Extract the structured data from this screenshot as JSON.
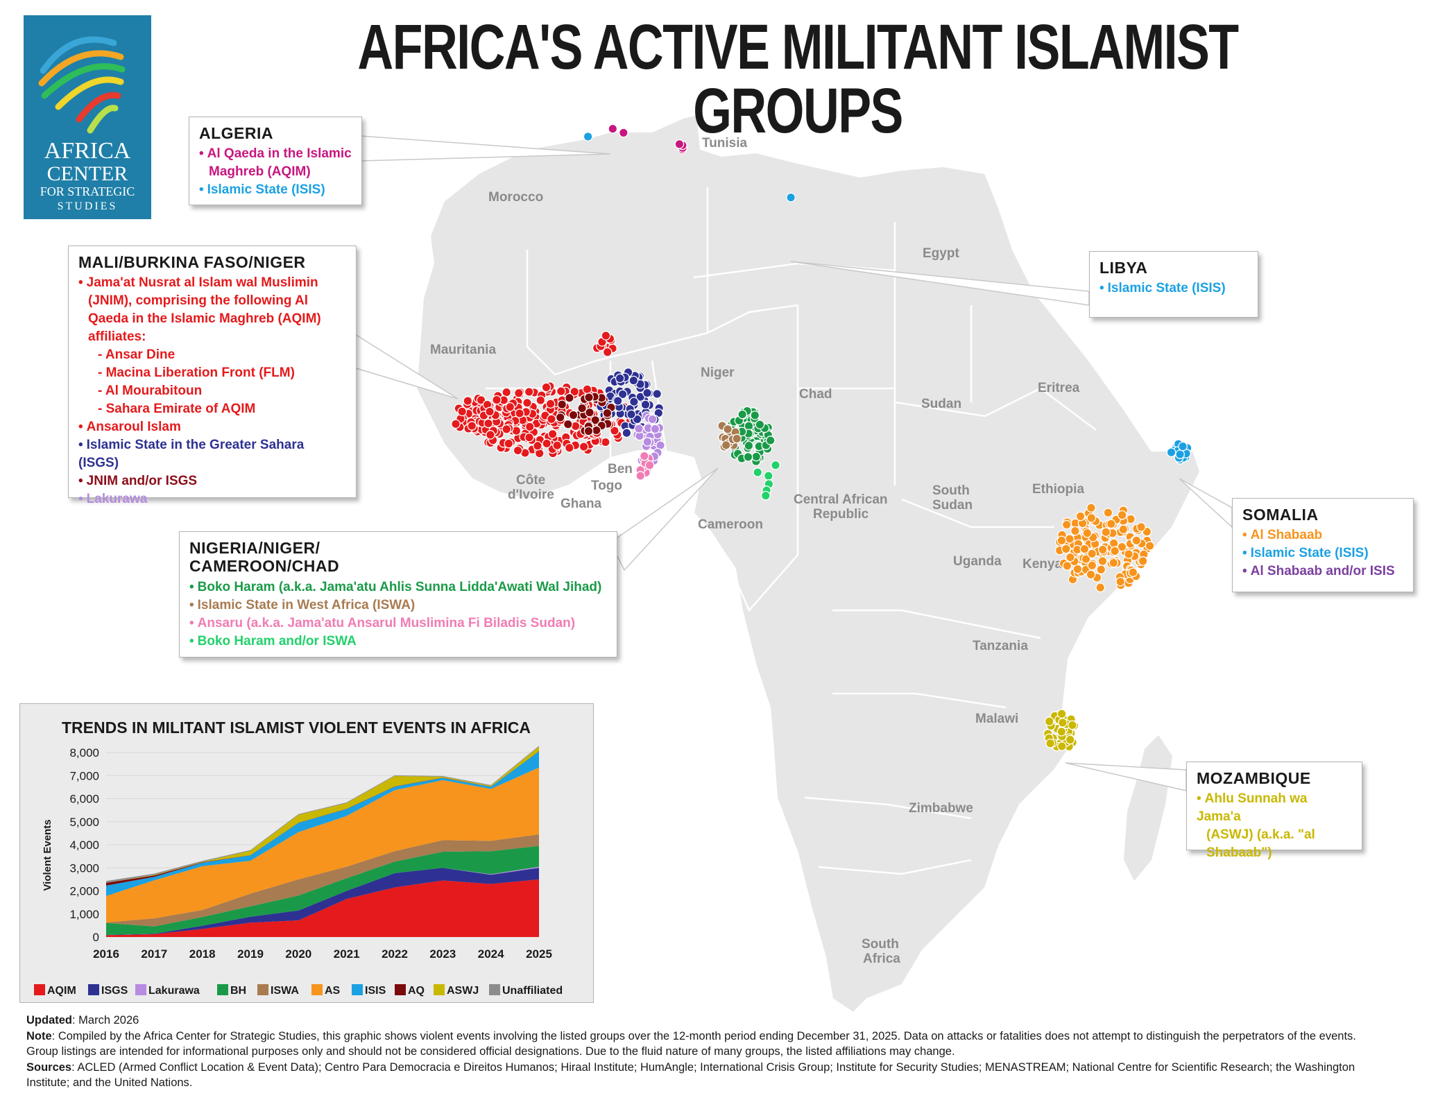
{
  "title": "AFRICA'S ACTIVE MILITANT ISLAMIST GROUPS",
  "logo": {
    "line1": "AFRICA",
    "line2": "CENTER",
    "line3": "FOR STRATEGIC",
    "line4": "STUDIES"
  },
  "colors": {
    "AQIM": "#e41a1c",
    "ISGS": "#2e3192",
    "Lakurawa": "#b68be0",
    "BH": "#1a9a48",
    "ISWA": "#a87b50",
    "AS": "#f7941d",
    "ISIS": "#1ba1e2",
    "AQ": "#7b0a0a",
    "ASWJ": "#c9b700",
    "Unaffiliated": "#8c8c8c",
    "AQIM_magenta": "#c8167f",
    "BH_or_ISWA": "#22d16b",
    "Ansaru": "#f07cb4",
    "JNIM_or_ISGS": "#8b0d1a",
    "AS_or_IS": "#7b3fa0"
  },
  "country_labels": {
    "tunisia": "Tunisia",
    "morocco": "Morocco",
    "egypt": "Egypt",
    "mauritania": "Mauritania",
    "niger": "Niger",
    "chad": "Chad",
    "sudan": "Sudan",
    "eritrea": "Eritrea",
    "ethiopia": "Ethiopia",
    "south_sudan_1": "South",
    "south_sudan_2": "Sudan",
    "car_1": "Central African",
    "car_2": "Republic",
    "cameroon": "Cameroon",
    "cote_1": "Côte",
    "cote_2": "d'Ivoire",
    "ghana": "Ghana",
    "togo": "Togo",
    "benin": "Ben",
    "uganda": "Uganda",
    "kenya": "Kenya",
    "tanzania": "Tanzania",
    "malawi": "Malawi",
    "zimbabwe": "Zimbabwe",
    "south_africa_1": "South",
    "south_africa_2": "Africa"
  },
  "callouts": {
    "algeria": {
      "title": "ALGERIA",
      "items": [
        "Al Qaeda in the Islamic",
        "Maghreb (AQIM)",
        "Islamic State (ISIS)"
      ]
    },
    "libya": {
      "title": "LIBYA",
      "items": [
        "Islamic State (ISIS)"
      ]
    },
    "mali": {
      "title": "MALI/BURKINA FASO/NIGER",
      "items": [
        "Jama'at Nusrat al Islam wal Muslimin",
        "(JNIM), comprising the following Al",
        "Qaeda in the Islamic Maghreb (AQIM)",
        "affiliates:",
        "- Ansar Dine",
        "- Macina Liberation Front (FLM)",
        "- Al Mourabitoun",
        "- Sahara Emirate of AQIM",
        "Ansaroul Islam",
        "Islamic State in the Greater Sahara (ISGS)",
        "JNIM and/or ISGS",
        "Lakurawa"
      ]
    },
    "nigeria": {
      "title_1": "NIGERIA/NIGER/",
      "title_2": "CAMEROON/CHAD",
      "items": [
        "Boko Haram (a.k.a. Jama'atu Ahlis Sunna Lidda'Awati Wal Jihad)",
        "Islamic State in West Africa (ISWA)",
        "Ansaru (a.k.a. Jama'atu Ansarul Muslimina Fi Biladis Sudan)",
        "Boko Haram and/or ISWA"
      ]
    },
    "somalia": {
      "title": "SOMALIA",
      "items": [
        "Al Shabaab",
        "Islamic State (ISIS)",
        "Al Shabaab and/or ISIS"
      ]
    },
    "mozambique": {
      "title": "MOZAMBIQUE",
      "items": [
        "Ahlu Sunnah wa Jama'a",
        "(ASWJ) (a.k.a. \"al",
        "Shabaab\")"
      ]
    }
  },
  "chart_data": {
    "type": "area",
    "stacked": true,
    "title": "TRENDS IN MILITANT ISLAMIST VIOLENT EVENTS IN AFRICA",
    "xlabel": "",
    "ylabel": "Violent Events",
    "x": [
      2016,
      2017,
      2018,
      2019,
      2020,
      2021,
      2022,
      2023,
      2024,
      2025
    ],
    "ylim": [
      0,
      8000
    ],
    "yticks": [
      0,
      1000,
      2000,
      3000,
      4000,
      5000,
      6000,
      7000,
      8000
    ],
    "ytick_labels": [
      "0",
      "1,000",
      "2,000",
      "3,000",
      "4,000",
      "5,000",
      "6,000",
      "7,000",
      "8,000"
    ],
    "series": [
      {
        "name": "AQIM",
        "values": [
          80,
          120,
          350,
          620,
          720,
          1650,
          2150,
          2450,
          2300,
          2500
        ]
      },
      {
        "name": "ISGS",
        "values": [
          10,
          20,
          140,
          260,
          430,
          350,
          620,
          550,
          400,
          500
        ]
      },
      {
        "name": "Lakurawa",
        "values": [
          0,
          0,
          0,
          0,
          0,
          0,
          0,
          0,
          20,
          50
        ]
      },
      {
        "name": "BH",
        "values": [
          520,
          320,
          380,
          450,
          650,
          550,
          500,
          700,
          1000,
          900
        ]
      },
      {
        "name": "ISWA",
        "values": [
          20,
          350,
          300,
          550,
          700,
          500,
          450,
          500,
          450,
          500
        ]
      },
      {
        "name": "AS",
        "values": [
          1150,
          1650,
          1900,
          1430,
          2050,
          2200,
          2650,
          2600,
          2250,
          2900
        ]
      },
      {
        "name": "ISIS",
        "values": [
          450,
          150,
          150,
          230,
          400,
          300,
          150,
          100,
          90,
          700
        ]
      },
      {
        "name": "AQ",
        "values": [
          120,
          60,
          20,
          10,
          10,
          10,
          10,
          10,
          10,
          10
        ]
      },
      {
        "name": "ASWJ",
        "values": [
          0,
          20,
          20,
          190,
          340,
          250,
          450,
          40,
          40,
          200
        ]
      },
      {
        "name": "Unaffiliated",
        "values": [
          80,
          60,
          40,
          30,
          30,
          30,
          30,
          30,
          30,
          30
        ]
      }
    ],
    "legend": [
      "AQIM",
      "ISGS",
      "Lakurawa",
      "BH",
      "ISWA",
      "AS",
      "ISIS",
      "AQ",
      "ASWJ",
      "Unaffiliated"
    ]
  },
  "footer": {
    "updated_label": "Updated",
    "updated_value": ": March 2026",
    "note_label": "Note",
    "note_text": ": Compiled by the Africa Center for Strategic Studies, this graphic shows violent events involving the listed groups over the 12-month period ending December 31, 2025. Data on attacks or fatalities does not attempt to distinguish the perpetrators of the events.",
    "note_text_2": "Group listings are intended for informational purposes only and should not be considered official designations. Due to the fluid nature of many groups, the listed affiliations may change.",
    "sources_label": "Sources",
    "sources_text": ": ACLED (Armed Conflict Location & Event Data); Centro Para Democracia e Direitos Humanos; Hiraal Institute; HumAngle; International Crisis Group;  Institute for Security Studies; MENASTREAM; National Centre for Scientific Research; the Washington",
    "sources_text_2": "Institute; and the United Nations."
  }
}
